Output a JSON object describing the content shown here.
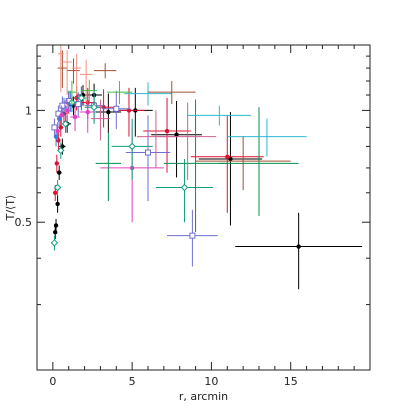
{
  "chart_data": {
    "type": "scatter",
    "title": "",
    "xlabel": "r, arcmin",
    "ylabel": "T/⟨T⟩",
    "xlim": [
      -1,
      20
    ],
    "ylim": [
      0.2,
      1.5
    ],
    "y_scale": "log",
    "x_ticks": [
      0,
      5,
      10,
      15
    ],
    "x_tick_labels": [
      "0",
      "5",
      "10",
      "15"
    ],
    "y_ticks": [
      0.5,
      1
    ],
    "y_tick_labels": [
      "0.5",
      "1"
    ],
    "grid": false,
    "legend": "none",
    "series": [
      {
        "color": "#000000",
        "marker": "filled-circle",
        "points": [
          {
            "x": 0.15,
            "y": 0.47,
            "xe": 0.1,
            "yl": 0.02,
            "yh": 0.02
          },
          {
            "x": 0.2,
            "y": 0.49,
            "xe": 0.1,
            "yl": 0.02,
            "yh": 0.02
          },
          {
            "x": 0.3,
            "y": 0.56,
            "xe": 0.1,
            "yl": 0.03,
            "yh": 0.03
          },
          {
            "x": 0.4,
            "y": 0.68,
            "xe": 0.15,
            "yl": 0.03,
            "yh": 0.03
          },
          {
            "x": 0.6,
            "y": 0.8,
            "xe": 0.2,
            "yl": 0.04,
            "yh": 0.04
          },
          {
            "x": 0.9,
            "y": 0.92,
            "xe": 0.25,
            "yl": 0.05,
            "yh": 0.05
          },
          {
            "x": 1.3,
            "y": 1.03,
            "xe": 0.3,
            "yl": 0.06,
            "yh": 0.06
          },
          {
            "x": 1.9,
            "y": 1.1,
            "xe": 0.4,
            "yl": 0.07,
            "yh": 0.07
          },
          {
            "x": 2.6,
            "y": 1.1,
            "xe": 0.5,
            "yl": 0.08,
            "yh": 0.08
          },
          {
            "x": 3.5,
            "y": 0.99,
            "xe": 0.8,
            "yl": 0.12,
            "yh": 0.12
          },
          {
            "x": 5.2,
            "y": 1.0,
            "xe": 1.1,
            "yl": 0.15,
            "yh": 0.15
          },
          {
            "x": 7.8,
            "y": 0.86,
            "xe": 1.6,
            "yl": 0.2,
            "yh": 0.2
          },
          {
            "x": 11.2,
            "y": 0.74,
            "xe": 2.0,
            "yl": 0.25,
            "yh": 0.25
          },
          {
            "x": 15.5,
            "y": 0.43,
            "xe": 4.0,
            "yl": 0.1,
            "yh": 0.1
          }
        ]
      },
      {
        "color": "#e01030",
        "marker": "filled-circle",
        "points": [
          {
            "x": 0.15,
            "y": 0.6,
            "xe": 0.1,
            "yl": 0.03,
            "yh": 0.03
          },
          {
            "x": 0.25,
            "y": 0.72,
            "xe": 0.1,
            "yl": 0.04,
            "yh": 0.04
          },
          {
            "x": 0.35,
            "y": 0.83,
            "xe": 0.12,
            "yl": 0.05,
            "yh": 0.05
          },
          {
            "x": 0.5,
            "y": 0.9,
            "xe": 0.15,
            "yl": 0.05,
            "yh": 0.05
          },
          {
            "x": 0.7,
            "y": 0.98,
            "xe": 0.2,
            "yl": 0.06,
            "yh": 0.06
          },
          {
            "x": 1.0,
            "y": 1.05,
            "xe": 0.25,
            "yl": 0.07,
            "yh": 0.07
          },
          {
            "x": 1.5,
            "y": 1.08,
            "xe": 0.3,
            "yl": 0.08,
            "yh": 0.08
          },
          {
            "x": 2.2,
            "y": 1.05,
            "xe": 0.5,
            "yl": 0.1,
            "yh": 0.1
          },
          {
            "x": 3.2,
            "y": 1.02,
            "xe": 0.7,
            "yl": 0.12,
            "yh": 0.12
          },
          {
            "x": 4.8,
            "y": 1.0,
            "xe": 1.0,
            "yl": 0.15,
            "yh": 0.15
          },
          {
            "x": 7.2,
            "y": 0.88,
            "xe": 1.5,
            "yl": 0.2,
            "yh": 0.2
          },
          {
            "x": 11.0,
            "y": 0.75,
            "xe": 2.3,
            "yl": 0.22,
            "yh": 0.22
          }
        ]
      },
      {
        "color": "#2080e0",
        "marker": "filled-circle",
        "points": [
          {
            "x": 0.2,
            "y": 0.85,
            "xe": 0.1,
            "yl": 0.05,
            "yh": 0.05
          },
          {
            "x": 0.4,
            "y": 0.95,
            "xe": 0.12,
            "yl": 0.05,
            "yh": 0.05
          },
          {
            "x": 0.7,
            "y": 1.02,
            "xe": 0.2,
            "yl": 0.06,
            "yh": 0.06
          },
          {
            "x": 1.1,
            "y": 1.06,
            "xe": 0.25,
            "yl": 0.07,
            "yh": 0.07
          },
          {
            "x": 1.8,
            "y": 1.08,
            "xe": 0.4,
            "yl": 0.08,
            "yh": 0.08
          }
        ]
      },
      {
        "color": "#7070d0",
        "marker": "open-square",
        "points": [
          {
            "x": 0.1,
            "y": 0.9,
            "xe": 0.1,
            "yl": 0.05,
            "yh": 0.05
          },
          {
            "x": 0.35,
            "y": 0.98,
            "xe": 0.12,
            "yl": 0.05,
            "yh": 0.05
          },
          {
            "x": 0.6,
            "y": 1.03,
            "xe": 0.2,
            "yl": 0.06,
            "yh": 0.06
          },
          {
            "x": 1.0,
            "y": 1.06,
            "xe": 0.3,
            "yl": 0.07,
            "yh": 0.07
          },
          {
            "x": 1.6,
            "y": 1.04,
            "xe": 0.4,
            "yl": 0.08,
            "yh": 0.08
          },
          {
            "x": 2.6,
            "y": 1.03,
            "xe": 0.6,
            "yl": 0.1,
            "yh": 0.1
          },
          {
            "x": 4.0,
            "y": 1.01,
            "xe": 0.9,
            "yl": 0.12,
            "yh": 0.12
          },
          {
            "x": 6.0,
            "y": 0.77,
            "xe": 1.4,
            "yl": 0.2,
            "yh": 0.2
          },
          {
            "x": 8.8,
            "y": 0.46,
            "xe": 1.6,
            "yl": 0.08,
            "yh": 0.08
          }
        ]
      },
      {
        "color": "#e040c0",
        "marker": "filled-circle",
        "points": [
          {
            "x": 0.3,
            "y": 0.88,
            "xe": 0.1,
            "yl": 0.05,
            "yh": 0.05
          },
          {
            "x": 0.55,
            "y": 0.97,
            "xe": 0.15,
            "yl": 0.06,
            "yh": 0.06
          },
          {
            "x": 0.9,
            "y": 1.0,
            "xe": 0.2,
            "yl": 0.07,
            "yh": 0.07
          },
          {
            "x": 1.4,
            "y": 0.96,
            "xe": 0.3,
            "yl": 0.08,
            "yh": 0.08
          },
          {
            "x": 2.2,
            "y": 0.99,
            "xe": 0.5,
            "yl": 0.12,
            "yh": 0.12
          },
          {
            "x": 5.0,
            "y": 0.7,
            "xe": 2.0,
            "yl": 0.2,
            "yh": 0.2
          }
        ]
      },
      {
        "color": "#10a080",
        "marker": "open-diamond",
        "points": [
          {
            "x": 0.1,
            "y": 0.44,
            "xe": 0.1,
            "yl": 0.02,
            "yh": 0.02
          },
          {
            "x": 0.3,
            "y": 0.62,
            "xe": 0.1,
            "yl": 0.03,
            "yh": 0.03
          },
          {
            "x": 0.5,
            "y": 0.78,
            "xe": 0.15,
            "yl": 0.04,
            "yh": 0.04
          },
          {
            "x": 0.8,
            "y": 0.92,
            "xe": 0.2,
            "yl": 0.05,
            "yh": 0.05
          },
          {
            "x": 1.2,
            "y": 1.05,
            "xe": 0.3,
            "yl": 0.06,
            "yh": 0.06
          },
          {
            "x": 1.8,
            "y": 1.08,
            "xe": 0.4,
            "yl": 0.08,
            "yh": 0.08
          },
          {
            "x": 2.6,
            "y": 1.02,
            "xe": 0.6,
            "yl": 0.1,
            "yh": 0.1
          },
          {
            "x": 5.0,
            "y": 0.8,
            "xe": 1.3,
            "yl": 0.15,
            "yh": 0.15
          },
          {
            "x": 8.3,
            "y": 0.62,
            "xe": 1.8,
            "yl": 0.12,
            "yh": 0.12
          }
        ]
      },
      {
        "color": "#009050",
        "marker": "none",
        "points": [
          {
            "x": 3.5,
            "y": 0.72,
            "xe": 0.8,
            "yl": 0.15,
            "yh": 0.15
          },
          {
            "x": 9.0,
            "y": 0.72,
            "xe": 2.0,
            "yl": 0.25,
            "yh": 0.35
          },
          {
            "x": 13.0,
            "y": 0.72,
            "xe": 2.5,
            "yl": 0.2,
            "yh": 0.3
          }
        ]
      },
      {
        "color": "#30b8d0",
        "marker": "none",
        "points": [
          {
            "x": 6.0,
            "y": 1.11,
            "xe": 1.5,
            "yl": 0.08,
            "yh": 0.08
          },
          {
            "x": 10.5,
            "y": 0.97,
            "xe": 2.0,
            "yl": 0.06,
            "yh": 0.06
          },
          {
            "x": 13.5,
            "y": 0.85,
            "xe": 2.5,
            "yl": 0.1,
            "yh": 0.1
          }
        ]
      },
      {
        "color": "#a05030",
        "marker": "none",
        "points": [
          {
            "x": 0.6,
            "y": 1.3,
            "xe": 0.3,
            "yl": 0.15,
            "yh": 0.15
          },
          {
            "x": 1.3,
            "y": 1.28,
            "xe": 0.4,
            "yl": 0.1,
            "yh": 0.1
          },
          {
            "x": 3.3,
            "y": 1.28,
            "xe": 0.7,
            "yl": 0.06,
            "yh": 0.06
          },
          {
            "x": 7.5,
            "y": 1.12,
            "xe": 1.5,
            "yl": 0.08,
            "yh": 0.08
          },
          {
            "x": 12.0,
            "y": 0.73,
            "xe": 3.0,
            "yl": 0.12,
            "yh": 0.12
          }
        ]
      },
      {
        "color": "#f09080",
        "marker": "none",
        "points": [
          {
            "x": 0.5,
            "y": 1.42,
            "xe": 0.2,
            "yl": 0.3,
            "yh": 0.1
          },
          {
            "x": 0.9,
            "y": 1.35,
            "xe": 0.3,
            "yl": 0.25,
            "yh": 0.1
          },
          {
            "x": 1.5,
            "y": 1.3,
            "xe": 0.3,
            "yl": 0.2,
            "yh": 0.12
          },
          {
            "x": 2.1,
            "y": 1.25,
            "xe": 0.4,
            "yl": 0.2,
            "yh": 0.12
          }
        ]
      },
      {
        "color": "#d06090",
        "marker": "none",
        "points": [
          {
            "x": 3.0,
            "y": 0.95,
            "xe": 0.6,
            "yl": 0.12,
            "yh": 0.12
          },
          {
            "x": 6.5,
            "y": 0.85,
            "xe": 1.2,
            "yl": 0.15,
            "yh": 0.15
          },
          {
            "x": 8.5,
            "y": 0.85,
            "xe": 1.8,
            "yl": 0.2,
            "yh": 0.2
          }
        ]
      },
      {
        "color": "#40c040",
        "marker": "none",
        "points": [
          {
            "x": 1.2,
            "y": 1.12,
            "xe": 0.3,
            "yl": 0.08,
            "yh": 0.08
          },
          {
            "x": 2.3,
            "y": 1.13,
            "xe": 0.5,
            "yl": 0.08,
            "yh": 0.08
          },
          {
            "x": 4.2,
            "y": 1.12,
            "xe": 0.8,
            "yl": 0.08,
            "yh": 0.08
          }
        ]
      }
    ]
  }
}
